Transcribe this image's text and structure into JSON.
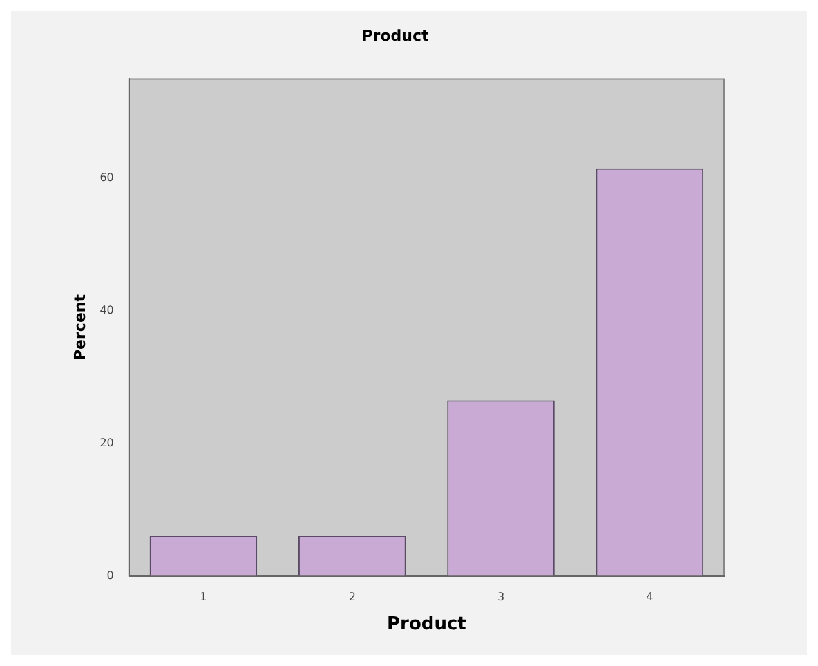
{
  "chart_data": {
    "type": "bar",
    "title": "Product",
    "xlabel": "Product",
    "ylabel": "Percent",
    "categories": [
      "1",
      "2",
      "3",
      "4"
    ],
    "values": [
      6,
      6,
      26.5,
      61.5
    ],
    "color": "#c8aad4",
    "ylim": [
      0,
      75
    ],
    "yticks": [
      0,
      20,
      40,
      60
    ],
    "grid": false,
    "legend": false
  }
}
